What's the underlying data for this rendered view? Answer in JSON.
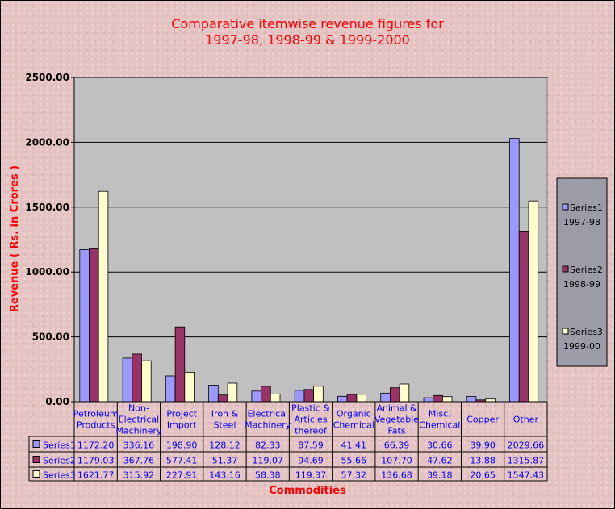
{
  "chart_data": {
    "type": "bar",
    "title": [
      "Comparative itemwise revenue figures for",
      "1997-98, 1998-99 & 1999-2000"
    ],
    "xlabel": "Commodities",
    "ylabel": "Revenue ( Rs. in Crores )",
    "ylim": [
      0,
      2500
    ],
    "yticks": [
      "0.00",
      "500.00",
      "1000.00",
      "1500.00",
      "2000.00",
      "2500.00"
    ],
    "grid": true,
    "legend_position": "right",
    "categories": [
      [
        "Petroleum",
        "Products"
      ],
      [
        "Non-",
        "Electrical",
        "Machinery"
      ],
      [
        "Project",
        "Import"
      ],
      [
        "Iron &",
        "Steel"
      ],
      [
        "Electrical",
        "Machinery"
      ],
      [
        "Plastic &",
        "Articles",
        "thereof"
      ],
      [
        "Organic",
        "Chemical"
      ],
      [
        "Animal &",
        "Vegetable",
        "Fats"
      ],
      [
        "Misc.",
        "Chemical"
      ],
      [
        "Copper"
      ],
      [
        "Other"
      ]
    ],
    "series": [
      {
        "name": "Series1",
        "legend_sub": "1997-98",
        "color": "#9999ff",
        "values": [
          1172.2,
          336.16,
          198.9,
          128.12,
          82.33,
          87.59,
          41.41,
          66.39,
          30.66,
          39.9,
          2029.66
        ]
      },
      {
        "name": "Series2",
        "legend_sub": "1998-99",
        "color": "#993366",
        "values": [
          1179.03,
          367.76,
          577.41,
          51.37,
          119.07,
          94.69,
          55.66,
          107.7,
          47.62,
          13.88,
          1315.87
        ]
      },
      {
        "name": "Series3",
        "legend_sub": "1999-00",
        "color": "#ffffcc",
        "values": [
          1621.77,
          315.92,
          227.91,
          143.16,
          58.38,
          119.37,
          57.32,
          136.68,
          39.18,
          20.65,
          1547.43
        ]
      }
    ],
    "data_table": true
  }
}
